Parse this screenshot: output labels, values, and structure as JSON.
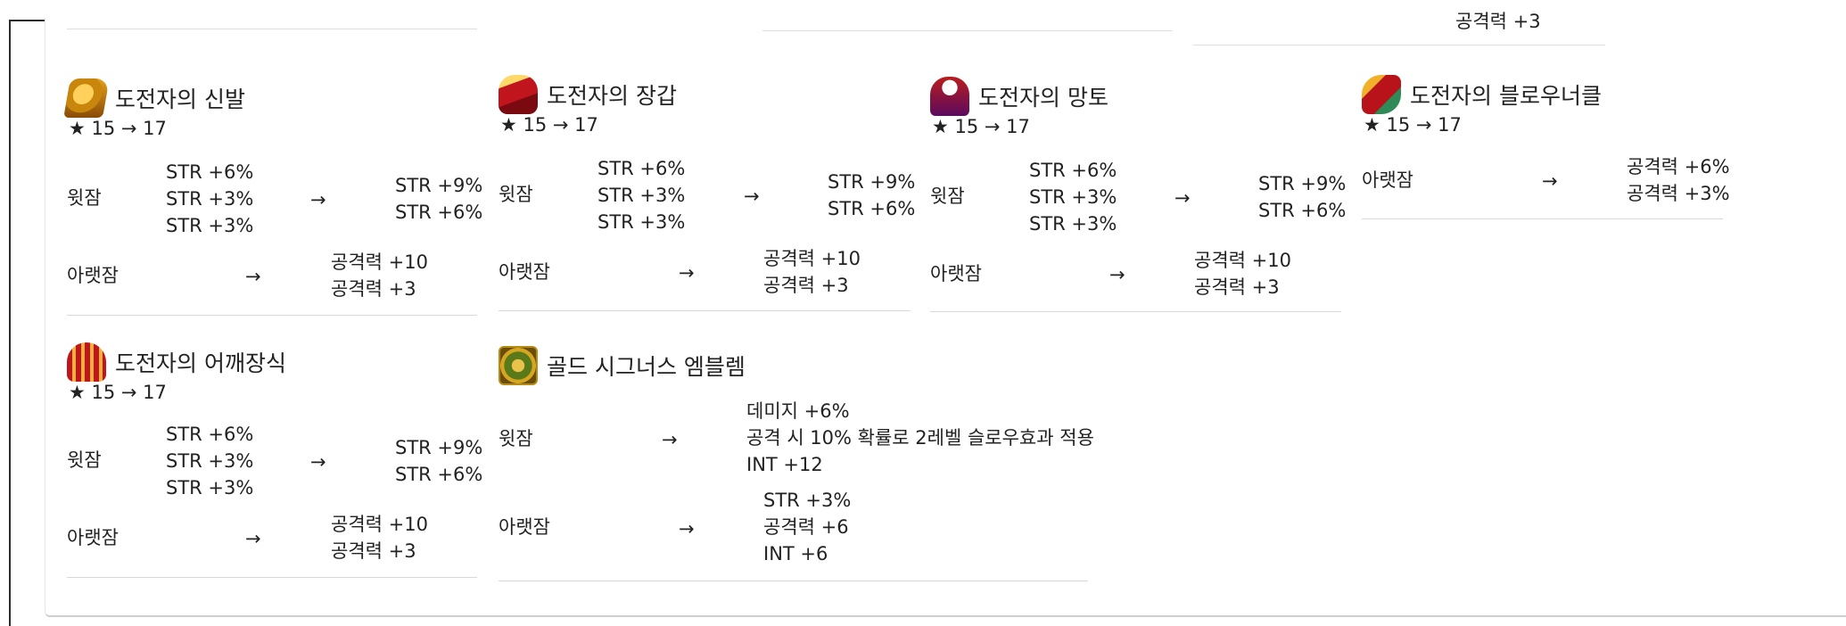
{
  "clipped_text": "공격력 +3",
  "items": [
    {
      "name": "도전자의 신발",
      "star": "★ 15 → 17",
      "icon": "shoes-icon",
      "top": {
        "label": "윗잠",
        "arrow": "→",
        "before": [
          "STR +6%",
          "STR +3%",
          "STR +3%"
        ],
        "after": [
          "STR +9%",
          "STR +6%"
        ]
      },
      "bottom": {
        "label": "아랫잠",
        "arrow": "→",
        "after": [
          "공격력 +10",
          "공격력 +3"
        ]
      }
    },
    {
      "name": "도전자의 장갑",
      "star": "★ 15 → 17",
      "icon": "glove-icon",
      "top": {
        "label": "윗잠",
        "arrow": "→",
        "before": [
          "STR +6%",
          "STR +3%",
          "STR +3%"
        ],
        "after": [
          "STR +9%",
          "STR +6%"
        ]
      },
      "bottom": {
        "label": "아랫잠",
        "arrow": "→",
        "after": [
          "공격력 +10",
          "공격력 +3"
        ]
      }
    },
    {
      "name": "도전자의 망토",
      "star": "★ 15 → 17",
      "icon": "cape-icon",
      "top": {
        "label": "윗잠",
        "arrow": "→",
        "before": [
          "STR +6%",
          "STR +3%",
          "STR +3%"
        ],
        "after": [
          "STR +9%",
          "STR +6%"
        ]
      },
      "bottom": {
        "label": "아랫잠",
        "arrow": "→",
        "after": [
          "공격력 +10",
          "공격력 +3"
        ]
      }
    },
    {
      "name": "도전자의 블로우너클",
      "star": "★ 15 → 17",
      "icon": "knuckle-icon",
      "bottom": {
        "label": "아랫잠",
        "arrow": "→",
        "after": [
          "공격력 +6%",
          "공격력 +3%"
        ]
      }
    },
    {
      "name": "도전자의 어깨장식",
      "star": "★ 15 → 17",
      "icon": "shoulder-icon",
      "top": {
        "label": "윗잠",
        "arrow": "→",
        "before": [
          "STR +6%",
          "STR +3%",
          "STR +3%"
        ],
        "after": [
          "STR +9%",
          "STR +6%"
        ]
      },
      "bottom": {
        "label": "아랫잠",
        "arrow": "→",
        "after": [
          "공격력 +10",
          "공격력 +3"
        ]
      }
    },
    {
      "name": "골드 시그너스 엠블렘",
      "icon": "emblem-icon",
      "top": {
        "label": "윗잠",
        "arrow": "→",
        "after": [
          "데미지 +6%",
          "공격 시 10% 확률로 2레벨 슬로우효과 적용",
          "INT +12"
        ]
      },
      "bottom": {
        "label": "아랫잠",
        "arrow": "→",
        "after": [
          "STR +3%",
          "공격력 +6",
          "INT +6"
        ]
      }
    }
  ]
}
